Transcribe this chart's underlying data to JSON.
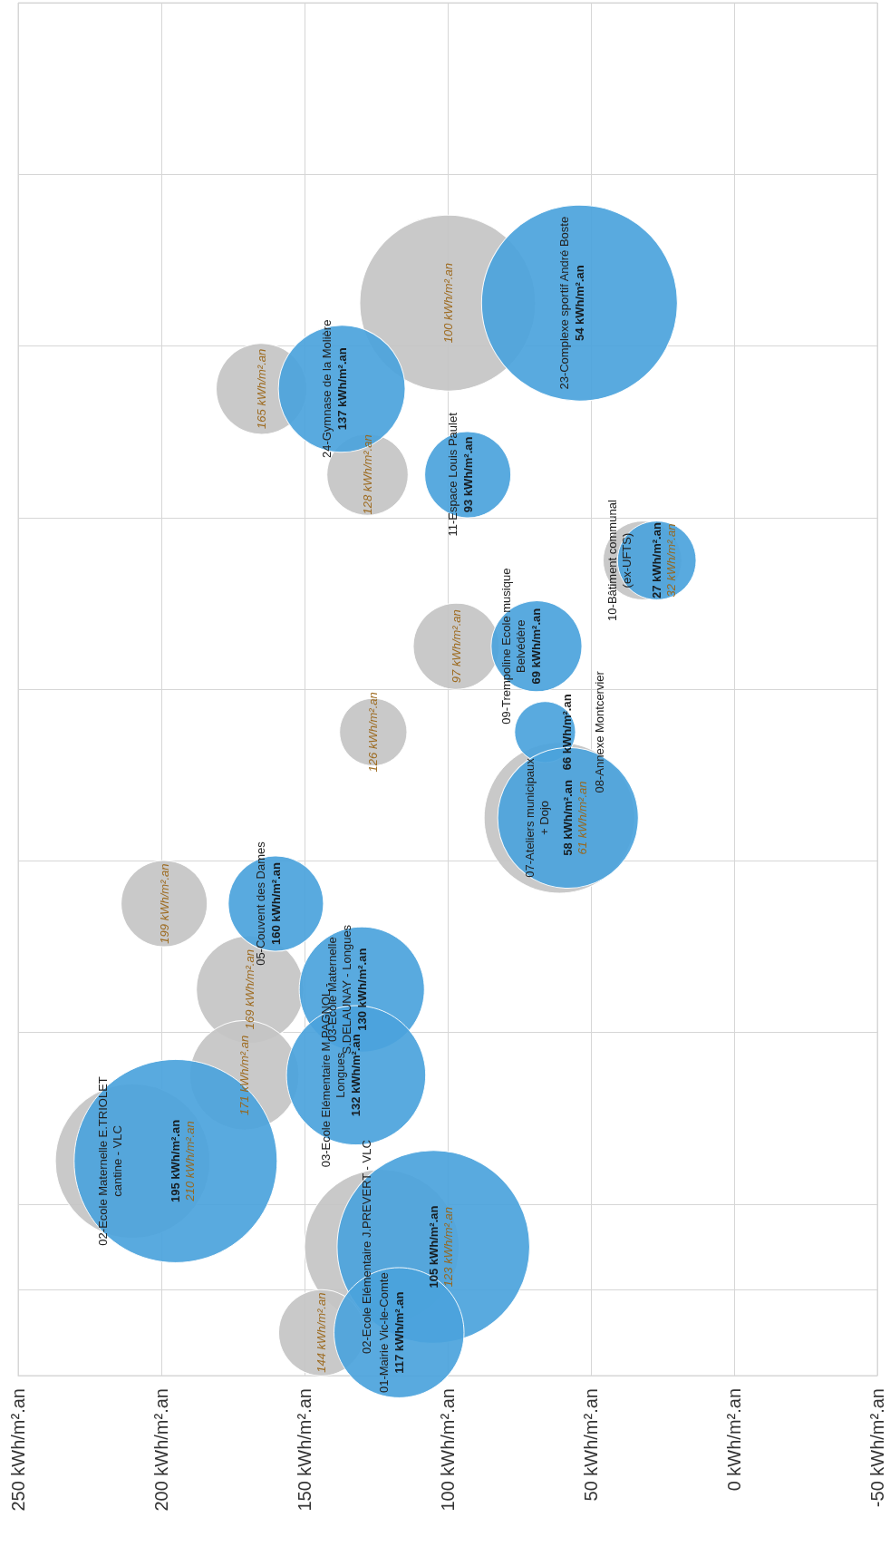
{
  "chart_data": {
    "type": "bubble",
    "orientation": "horizontal",
    "grid": true,
    "tick_labels": "x",
    "categories": [
      null,
      null,
      null,
      null,
      null,
      null,
      null,
      null,
      null,
      null,
      null,
      null,
      null,
      null,
      null,
      null
    ],
    "xlim": [
      250,
      -50
    ],
    "xticks": [
      {
        "value": 250,
        "label": "250 kWh/m².an"
      },
      {
        "value": 200,
        "label": "200 kWh/m².an"
      },
      {
        "value": 150,
        "label": "150 kWh/m².an"
      },
      {
        "value": 100,
        "label": "100 kWh/m².an"
      },
      {
        "value": 50,
        "label": "50 kWh/m².an"
      },
      {
        "value": 0,
        "label": "0 kWh/m².an"
      },
      {
        "value": -50,
        "label": "-50 kWh/m².an"
      }
    ],
    "annotations": [
      "23-Complexe sportif André Boste",
      "24-Gymnase de la Molière",
      "11-Espace Louis Paulet",
      "10-Bâtiment communal\n(ex-UFTS)",
      "09-Trempoline Ecole musique\nBelvédère",
      "08-Annexe Montcervier",
      "07-Ateliers municipaux\n+ Dojo",
      "05-Couvent des Dames",
      "03-Ecole Maternelle\nS.DELAUNAY - Longues",
      "03-Ecole Elémentaire M.PAGNOL -\nLongues",
      "02-Ecole Maternelle E.TRIOLET\ncantine - VLC",
      "02-Ecole Elémentaire J.PREVERT - VLC",
      "01-Mairie Vic-le-Comte"
    ],
    "series": [
      {
        "color": "#c4c4c4",
        "values": [
          null,
          null,
          null,
          100,
          165,
          128,
          32,
          97,
          126,
          61,
          199,
          169,
          171,
          210,
          123,
          144
        ],
        "sizes": [
          null,
          null,
          null,
          0.75,
          0.2,
          0.16,
          0.15,
          0.18,
          0.11,
          0.55,
          0.18,
          0.28,
          0.29,
          0.58,
          0.58,
          0.18
        ],
        "value_labels": [
          null,
          null,
          null,
          "100 kWh/m².an",
          "165 kWh/m².an",
          "128 kWh/m².an",
          "32 kWh/m².an",
          "97 kWh/m².an",
          "126 kWh/m².an",
          "61 kWh/m².an",
          "199 kWh/m².an",
          "169 kWh/m².an",
          "171 kWh/m².an",
          "210 kWh/m².an",
          "123 kWh/m².an",
          "144 kWh/m².an"
        ]
      },
      {
        "color": "#4ba3dc",
        "values": [
          null,
          null,
          null,
          54,
          137,
          93,
          27,
          69,
          66,
          58,
          160,
          130,
          132,
          195,
          105,
          117
        ],
        "sizes": [
          null,
          null,
          null,
          0.93,
          0.39,
          0.18,
          0.15,
          0.2,
          0.09,
          0.48,
          0.22,
          0.38,
          0.47,
          1.0,
          0.9,
          0.41
        ],
        "value_labels": [
          null,
          null,
          null,
          "54 kWh/m².an",
          "137 kWh/m².an",
          "93 kWh/m².an",
          "27 kWh/m².an",
          "69 kWh/m².an",
          "66 kWh/m².an",
          "58 kWh/m².an",
          "160 kWh/m².an",
          "130 kWh/m².an",
          "132 kWh/m².an",
          "195 kWh/m².an",
          "105 kWh/m².an",
          "117 kWh/m².an"
        ]
      }
    ]
  }
}
